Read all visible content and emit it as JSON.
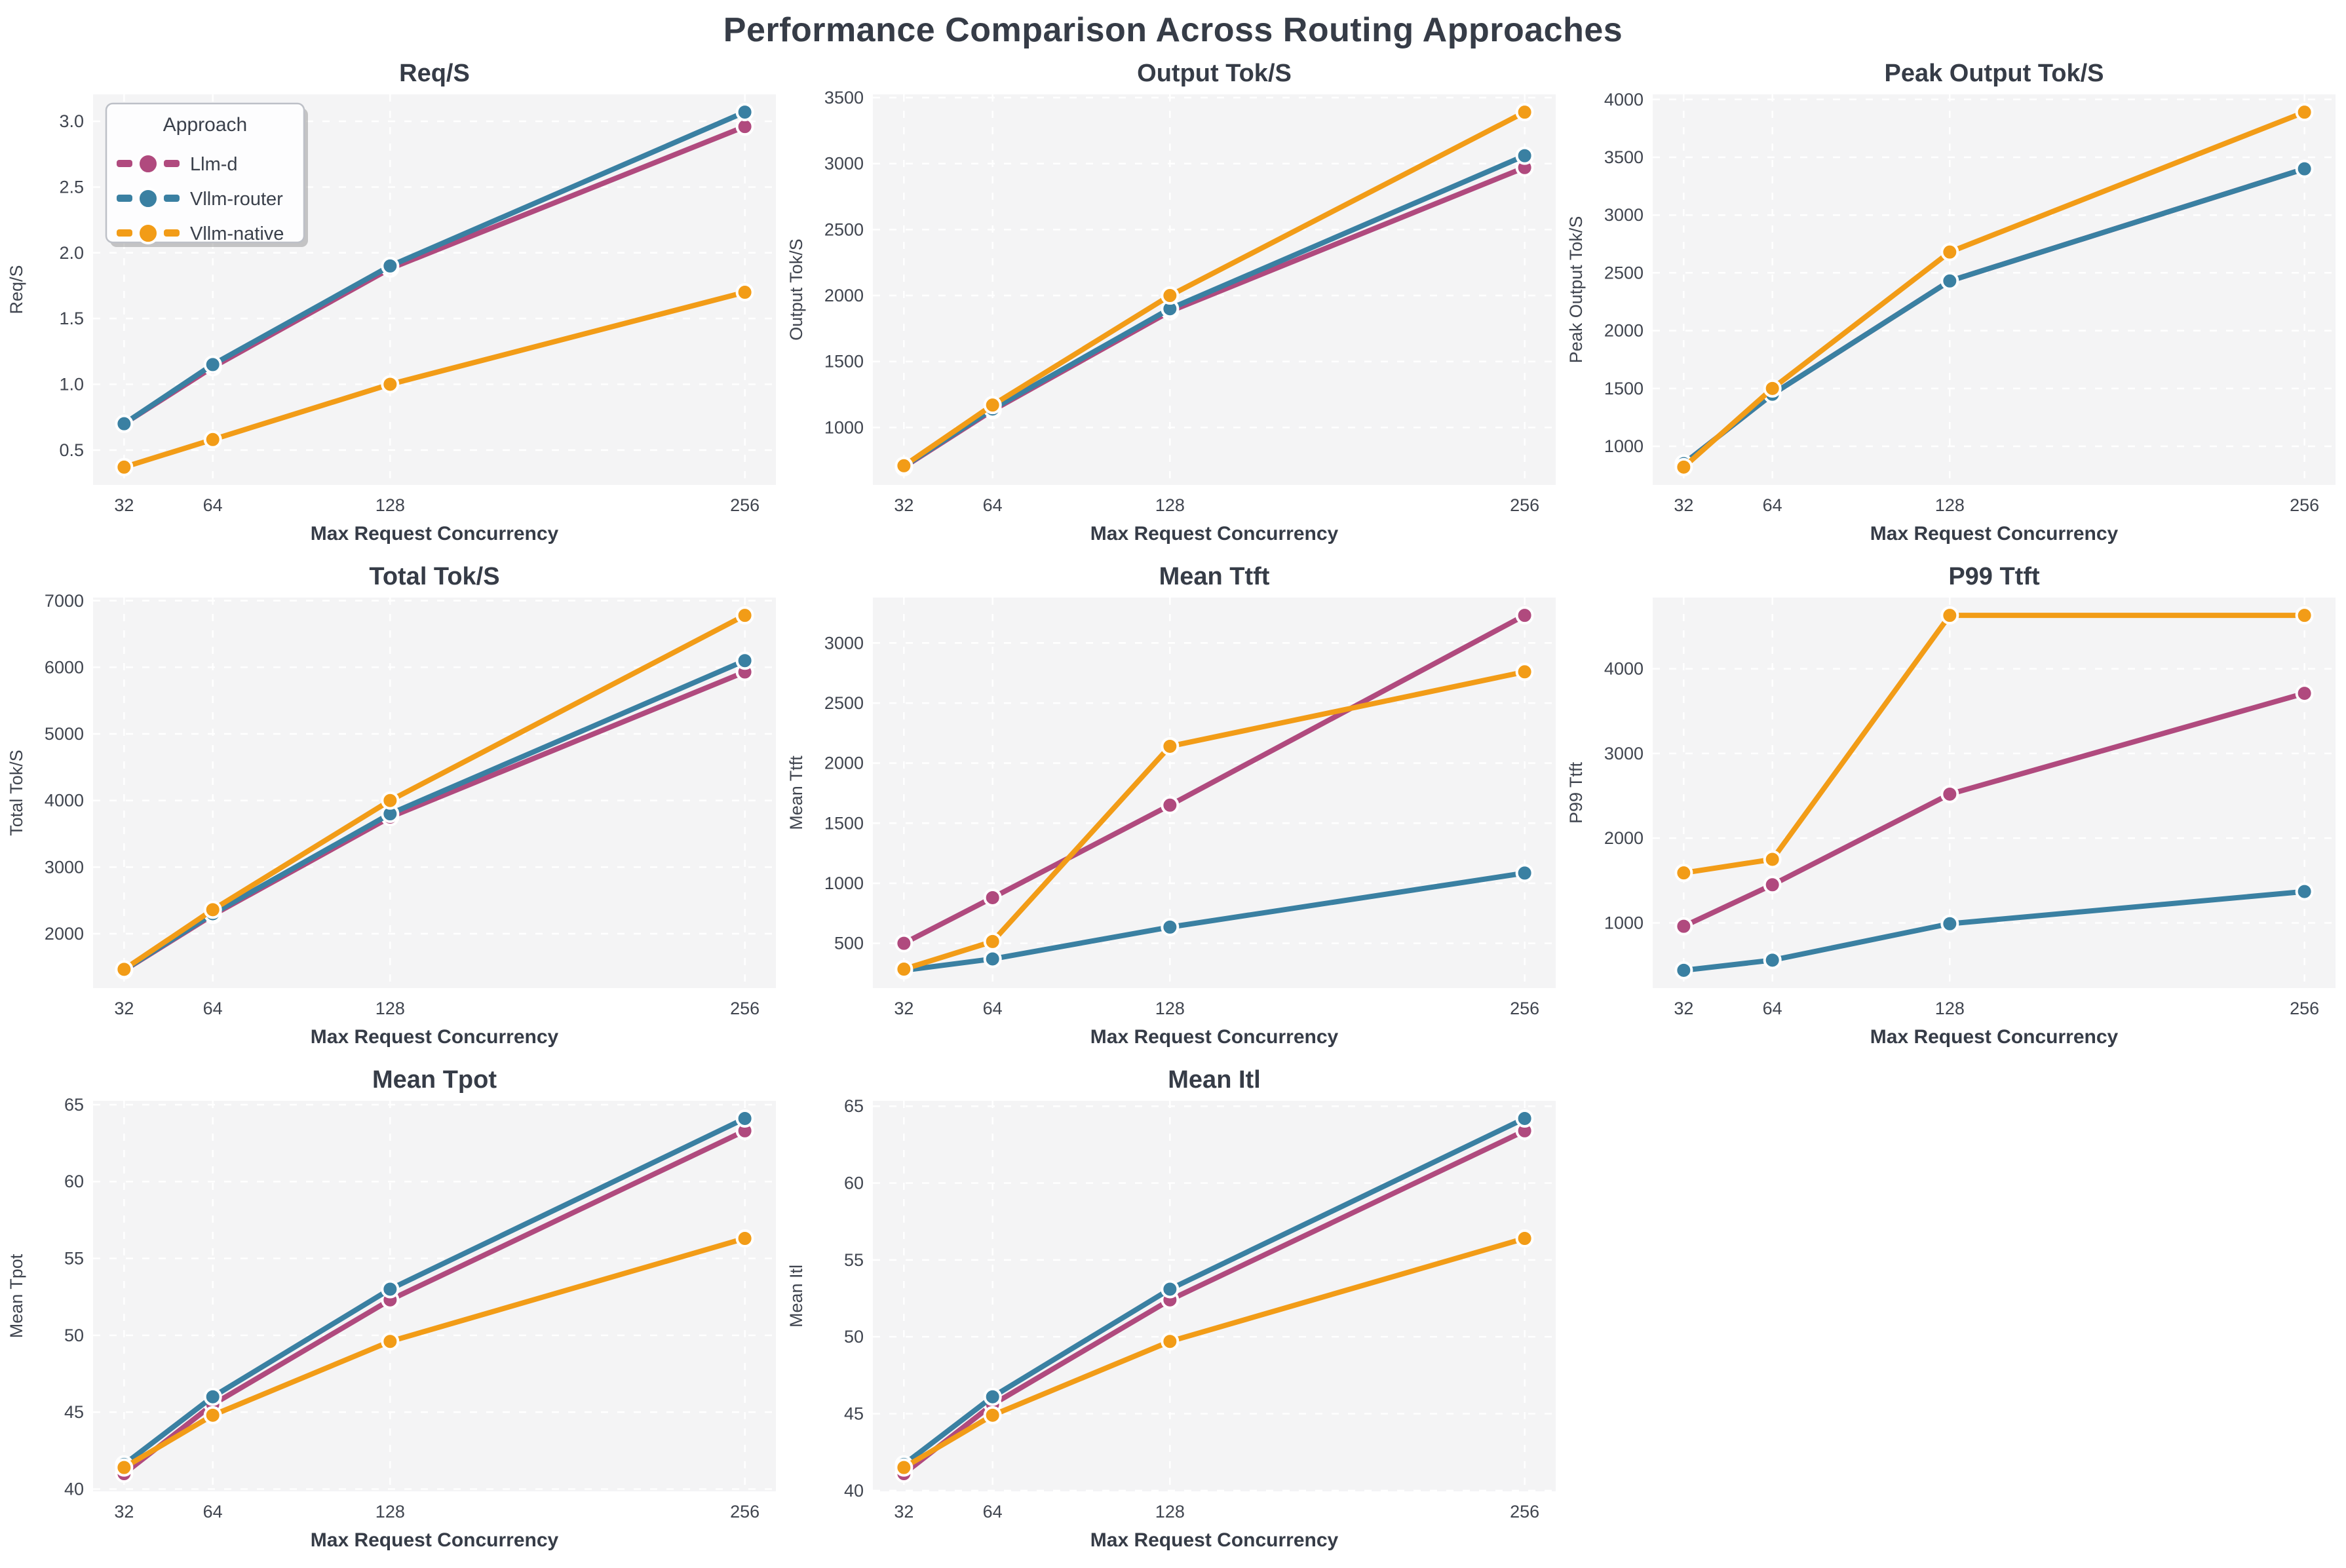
{
  "page": {
    "title": "Performance Comparison Across Routing Approaches"
  },
  "legend": {
    "title": "Approach",
    "entries": [
      {
        "label": "Llm-d",
        "color": "#b04a7e"
      },
      {
        "label": "Vllm-router",
        "color": "#3a80a2"
      },
      {
        "label": "Vllm-native",
        "color": "#f29c17"
      }
    ]
  },
  "axes": {
    "xlabel": "Max Request Concurrency",
    "xticks": [
      32,
      64,
      128,
      256
    ],
    "xtick_labels": [
      "32",
      "64",
      "128",
      "256"
    ],
    "xlim": [
      20.8,
      267.2
    ]
  },
  "style": {
    "plot_bg": "#f4f4f5",
    "grid_color": "#ffffff",
    "marker_edge": "#ffffff"
  },
  "chart_data": [
    {
      "type": "line",
      "title": "Req/S",
      "ylabel": "Req/S",
      "xlabel": "Max Request Concurrency",
      "x": [
        32,
        64,
        128,
        256
      ],
      "ylim": [
        0.235,
        3.205
      ],
      "ytick_vals": [
        0.5,
        1.0,
        1.5,
        2.0,
        2.5,
        3.0
      ],
      "ytick_labels": [
        "0.5",
        "1.0",
        "1.5",
        "2.0",
        "2.5",
        "3.0"
      ],
      "legend": true,
      "grid": true,
      "series": [
        {
          "name": "Llm-d",
          "color": "#b04a7e",
          "values": [
            0.7,
            1.13,
            1.88,
            2.96
          ]
        },
        {
          "name": "Vllm-router",
          "color": "#3a80a2",
          "values": [
            0.7,
            1.15,
            1.9,
            3.07
          ]
        },
        {
          "name": "Vllm-native",
          "color": "#f29c17",
          "values": [
            0.37,
            0.58,
            1.0,
            1.7
          ]
        }
      ]
    },
    {
      "type": "line",
      "title": "Output Tok/S",
      "ylabel": "Output Tok/S",
      "xlabel": "Max Request Concurrency",
      "x": [
        32,
        64,
        128,
        256
      ],
      "ylim": [
        565,
        3525
      ],
      "ytick_vals": [
        1000,
        1500,
        2000,
        2500,
        3000,
        3500
      ],
      "ytick_labels": [
        "1000",
        "1500",
        "2000",
        "2500",
        "3000",
        "3500"
      ],
      "legend": false,
      "grid": true,
      "series": [
        {
          "name": "Llm-d",
          "color": "#b04a7e",
          "values": [
            700,
            1130,
            1880,
            2970
          ]
        },
        {
          "name": "Vllm-router",
          "color": "#3a80a2",
          "values": [
            705,
            1140,
            1900,
            3060
          ]
        },
        {
          "name": "Vllm-native",
          "color": "#f29c17",
          "values": [
            710,
            1170,
            2000,
            3390
          ]
        }
      ]
    },
    {
      "type": "line",
      "title": "Peak Output Tok/S",
      "ylabel": "Peak Output Tok/S",
      "xlabel": "Max Request Concurrency",
      "x": [
        32,
        64,
        128,
        256
      ],
      "ylim": [
        666,
        4044
      ],
      "ytick_vals": [
        1000,
        1500,
        2000,
        2500,
        3000,
        3500,
        4000
      ],
      "ytick_labels": [
        "1000",
        "1500",
        "2000",
        "2500",
        "3000",
        "3500",
        "4000"
      ],
      "legend": false,
      "grid": true,
      "series": [
        {
          "name": "Llm-d",
          "color": "#b04a7e",
          "values": [
            850,
            1450,
            2430,
            3400
          ]
        },
        {
          "name": "Vllm-router",
          "color": "#3a80a2",
          "values": [
            850,
            1450,
            2430,
            3400
          ]
        },
        {
          "name": "Vllm-native",
          "color": "#f29c17",
          "values": [
            820,
            1500,
            2680,
            3890
          ]
        }
      ]
    },
    {
      "type": "line",
      "title": "Total Tok/S",
      "ylabel": "Total Tok/S",
      "xlabel": "Max Request Concurrency",
      "x": [
        32,
        64,
        128,
        256
      ],
      "ylim": [
        1183,
        7047
      ],
      "ytick_vals": [
        2000,
        3000,
        4000,
        5000,
        6000,
        7000
      ],
      "ytick_labels": [
        "2000",
        "3000",
        "4000",
        "5000",
        "6000",
        "7000"
      ],
      "legend": false,
      "grid": true,
      "series": [
        {
          "name": "Llm-d",
          "color": "#b04a7e",
          "values": [
            1450,
            2280,
            3750,
            5930
          ]
        },
        {
          "name": "Vllm-router",
          "color": "#3a80a2",
          "values": [
            1455,
            2300,
            3800,
            6100
          ]
        },
        {
          "name": "Vllm-native",
          "color": "#f29c17",
          "values": [
            1465,
            2360,
            4000,
            6780
          ]
        }
      ]
    },
    {
      "type": "line",
      "title": "Mean Ttft",
      "ylabel": "Mean Ttft",
      "xlabel": "Max Request Concurrency",
      "x": [
        32,
        64,
        128,
        256
      ],
      "ylim": [
        127,
        3378
      ],
      "ytick_vals": [
        500,
        1000,
        1500,
        2000,
        2500,
        3000
      ],
      "ytick_labels": [
        "500",
        "1000",
        "1500",
        "2000",
        "2500",
        "3000"
      ],
      "legend": false,
      "grid": true,
      "series": [
        {
          "name": "Llm-d",
          "color": "#b04a7e",
          "values": [
            500,
            880,
            1650,
            3230
          ]
        },
        {
          "name": "Vllm-router",
          "color": "#3a80a2",
          "values": [
            275,
            370,
            635,
            1085
          ]
        },
        {
          "name": "Vllm-native",
          "color": "#f29c17",
          "values": [
            285,
            515,
            2140,
            2760
          ]
        }
      ]
    },
    {
      "type": "line",
      "title": "P99 Ttft",
      "ylabel": "P99 Ttft",
      "xlabel": "Max Request Concurrency",
      "x": [
        32,
        64,
        128,
        256
      ],
      "ylim": [
        230,
        4840
      ],
      "ytick_vals": [
        1000,
        2000,
        3000,
        4000
      ],
      "ytick_labels": [
        "1000",
        "2000",
        "3000",
        "4000"
      ],
      "legend": false,
      "grid": true,
      "series": [
        {
          "name": "Llm-d",
          "color": "#b04a7e",
          "values": [
            960,
            1450,
            2520,
            3710
          ]
        },
        {
          "name": "Vllm-router",
          "color": "#3a80a2",
          "values": [
            440,
            560,
            990,
            1370
          ]
        },
        {
          "name": "Vllm-native",
          "color": "#f29c17",
          "values": [
            1590,
            1750,
            4630,
            4630
          ]
        }
      ]
    },
    {
      "type": "line",
      "title": "Mean Tpot",
      "ylabel": "Mean Tpot",
      "xlabel": "Max Request Concurrency",
      "x": [
        32,
        64,
        128,
        256
      ],
      "ylim": [
        39.85,
        65.25
      ],
      "ytick_vals": [
        40,
        45,
        50,
        55,
        60,
        65
      ],
      "ytick_labels": [
        "40",
        "45",
        "50",
        "55",
        "60",
        "65"
      ],
      "legend": false,
      "grid": true,
      "series": [
        {
          "name": "Llm-d",
          "color": "#b04a7e",
          "values": [
            41.0,
            45.5,
            52.3,
            63.3
          ]
        },
        {
          "name": "Vllm-router",
          "color": "#3a80a2",
          "values": [
            41.6,
            46.0,
            53.0,
            64.1
          ]
        },
        {
          "name": "Vllm-native",
          "color": "#f29c17",
          "values": [
            41.4,
            44.8,
            49.6,
            56.3
          ]
        }
      ]
    },
    {
      "type": "line",
      "title": "Mean Itl",
      "ylabel": "Mean Itl",
      "xlabel": "Max Request Concurrency",
      "x": [
        32,
        64,
        128,
        256
      ],
      "ylim": [
        39.95,
        65.35
      ],
      "ytick_vals": [
        40,
        45,
        50,
        55,
        60,
        65
      ],
      "ytick_labels": [
        "40",
        "45",
        "50",
        "55",
        "60",
        "65"
      ],
      "legend": false,
      "grid": true,
      "series": [
        {
          "name": "Llm-d",
          "color": "#b04a7e",
          "values": [
            41.1,
            45.6,
            52.4,
            63.4
          ]
        },
        {
          "name": "Vllm-router",
          "color": "#3a80a2",
          "values": [
            41.7,
            46.1,
            53.1,
            64.2
          ]
        },
        {
          "name": "Vllm-native",
          "color": "#f29c17",
          "values": [
            41.5,
            44.9,
            49.7,
            56.4
          ]
        }
      ]
    }
  ]
}
